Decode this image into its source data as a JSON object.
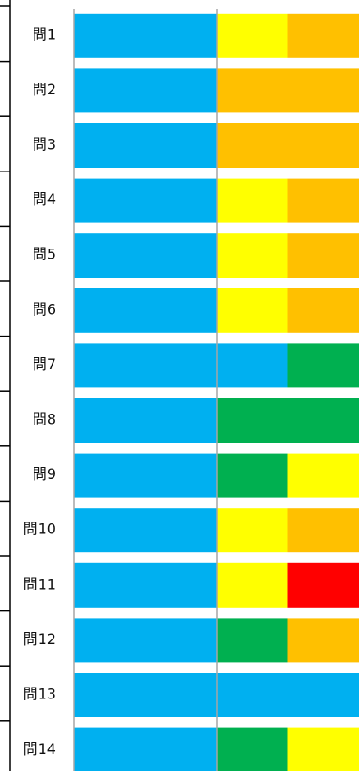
{
  "chart_data": {
    "type": "bar",
    "stacked": true,
    "orientation": "horizontal",
    "categories": [
      "問1",
      "問2",
      "問3",
      "問4",
      "問5",
      "問6",
      "問7",
      "問8",
      "問9",
      "問10",
      "問11",
      "問12",
      "問13",
      "問14"
    ],
    "rows": [
      {
        "label": "問1",
        "segments": [
          {
            "color": "#00B0F0",
            "value": 2
          },
          {
            "color": "#FFFF00",
            "value": 1
          },
          {
            "color": "#FFC000",
            "value": 1
          }
        ]
      },
      {
        "label": "問2",
        "segments": [
          {
            "color": "#00B0F0",
            "value": 2
          },
          {
            "color": "#FFC000",
            "value": 2
          }
        ]
      },
      {
        "label": "問3",
        "segments": [
          {
            "color": "#00B0F0",
            "value": 2
          },
          {
            "color": "#FFC000",
            "value": 2
          }
        ]
      },
      {
        "label": "問4",
        "segments": [
          {
            "color": "#00B0F0",
            "value": 2
          },
          {
            "color": "#FFFF00",
            "value": 1
          },
          {
            "color": "#FFC000",
            "value": 1
          }
        ]
      },
      {
        "label": "問5",
        "segments": [
          {
            "color": "#00B0F0",
            "value": 2
          },
          {
            "color": "#FFFF00",
            "value": 1
          },
          {
            "color": "#FFC000",
            "value": 1
          }
        ]
      },
      {
        "label": "問6",
        "segments": [
          {
            "color": "#00B0F0",
            "value": 2
          },
          {
            "color": "#FFFF00",
            "value": 1
          },
          {
            "color": "#FFC000",
            "value": 1
          }
        ]
      },
      {
        "label": "問7",
        "segments": [
          {
            "color": "#00B0F0",
            "value": 3
          },
          {
            "color": "#00B050",
            "value": 1
          }
        ]
      },
      {
        "label": "問8",
        "segments": [
          {
            "color": "#00B0F0",
            "value": 2
          },
          {
            "color": "#00B050",
            "value": 2
          }
        ]
      },
      {
        "label": "問9",
        "segments": [
          {
            "color": "#00B0F0",
            "value": 2
          },
          {
            "color": "#00B050",
            "value": 1
          },
          {
            "color": "#FFFF00",
            "value": 1
          }
        ]
      },
      {
        "label": "問10",
        "segments": [
          {
            "color": "#00B0F0",
            "value": 2
          },
          {
            "color": "#FFFF00",
            "value": 1
          },
          {
            "color": "#FFC000",
            "value": 1
          }
        ]
      },
      {
        "label": "問11",
        "segments": [
          {
            "color": "#00B0F0",
            "value": 2
          },
          {
            "color": "#FFFF00",
            "value": 1
          },
          {
            "color": "#FF0000",
            "value": 1
          }
        ]
      },
      {
        "label": "問12",
        "segments": [
          {
            "color": "#00B0F0",
            "value": 2
          },
          {
            "color": "#00B050",
            "value": 1
          },
          {
            "color": "#FFC000",
            "value": 1
          }
        ]
      },
      {
        "label": "問13",
        "segments": [
          {
            "color": "#00B0F0",
            "value": 4
          }
        ]
      },
      {
        "label": "問14",
        "segments": [
          {
            "color": "#00B0F0",
            "value": 2
          },
          {
            "color": "#00B050",
            "value": 1
          },
          {
            "color": "#FFFF00",
            "value": 1
          }
        ]
      }
    ],
    "xlim": [
      0,
      4
    ],
    "vertical_gridlines_at": [
      0,
      2
    ],
    "legend": "none",
    "colors": {
      "blue": "#00B0F0",
      "yellow": "#FFFF00",
      "orange": "#FFC000",
      "green": "#00B050",
      "red": "#FF0000",
      "gridline": "#A6A6A6",
      "row_separator": "#000000"
    }
  }
}
